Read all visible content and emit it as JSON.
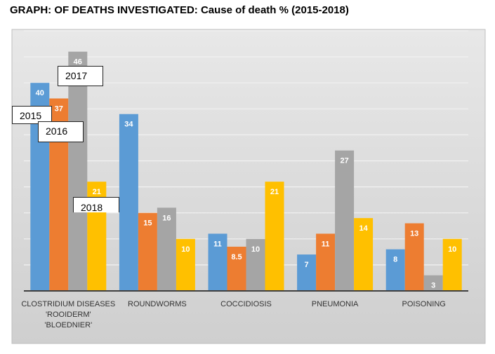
{
  "chart_data": {
    "type": "bar",
    "title": "GRAPH: OF DEATHS INVESTIGATED: Cause of death % (2015-2018)",
    "categories": [
      [
        "CLOSTRIDIUM DISEASES",
        "'ROOIDERM'",
        "'BLOEDNIER'"
      ],
      [
        "ROUNDWORMS"
      ],
      [
        "COCCIDIOSIS"
      ],
      [
        "PNEUMONIA"
      ],
      [
        "POISONING"
      ]
    ],
    "series": [
      {
        "name": "2015",
        "color": "#5b9bd5",
        "values": [
          40,
          34,
          11,
          7,
          8
        ]
      },
      {
        "name": "2016",
        "color": "#ed7d31",
        "values": [
          37,
          15,
          8.5,
          11,
          13
        ]
      },
      {
        "name": "2017",
        "color": "#a5a5a5",
        "values": [
          46,
          16,
          10,
          27,
          3
        ]
      },
      {
        "name": "2018",
        "color": "#ffc000",
        "values": [
          21,
          10,
          21,
          14,
          10
        ]
      }
    ],
    "ylim": [
      0,
      50
    ],
    "xlabel": "",
    "ylabel": "",
    "grid": true
  },
  "colors": {
    "plot_background": "#d9d9d9",
    "gridline": "#f2f2f2",
    "axis": "#404040"
  }
}
